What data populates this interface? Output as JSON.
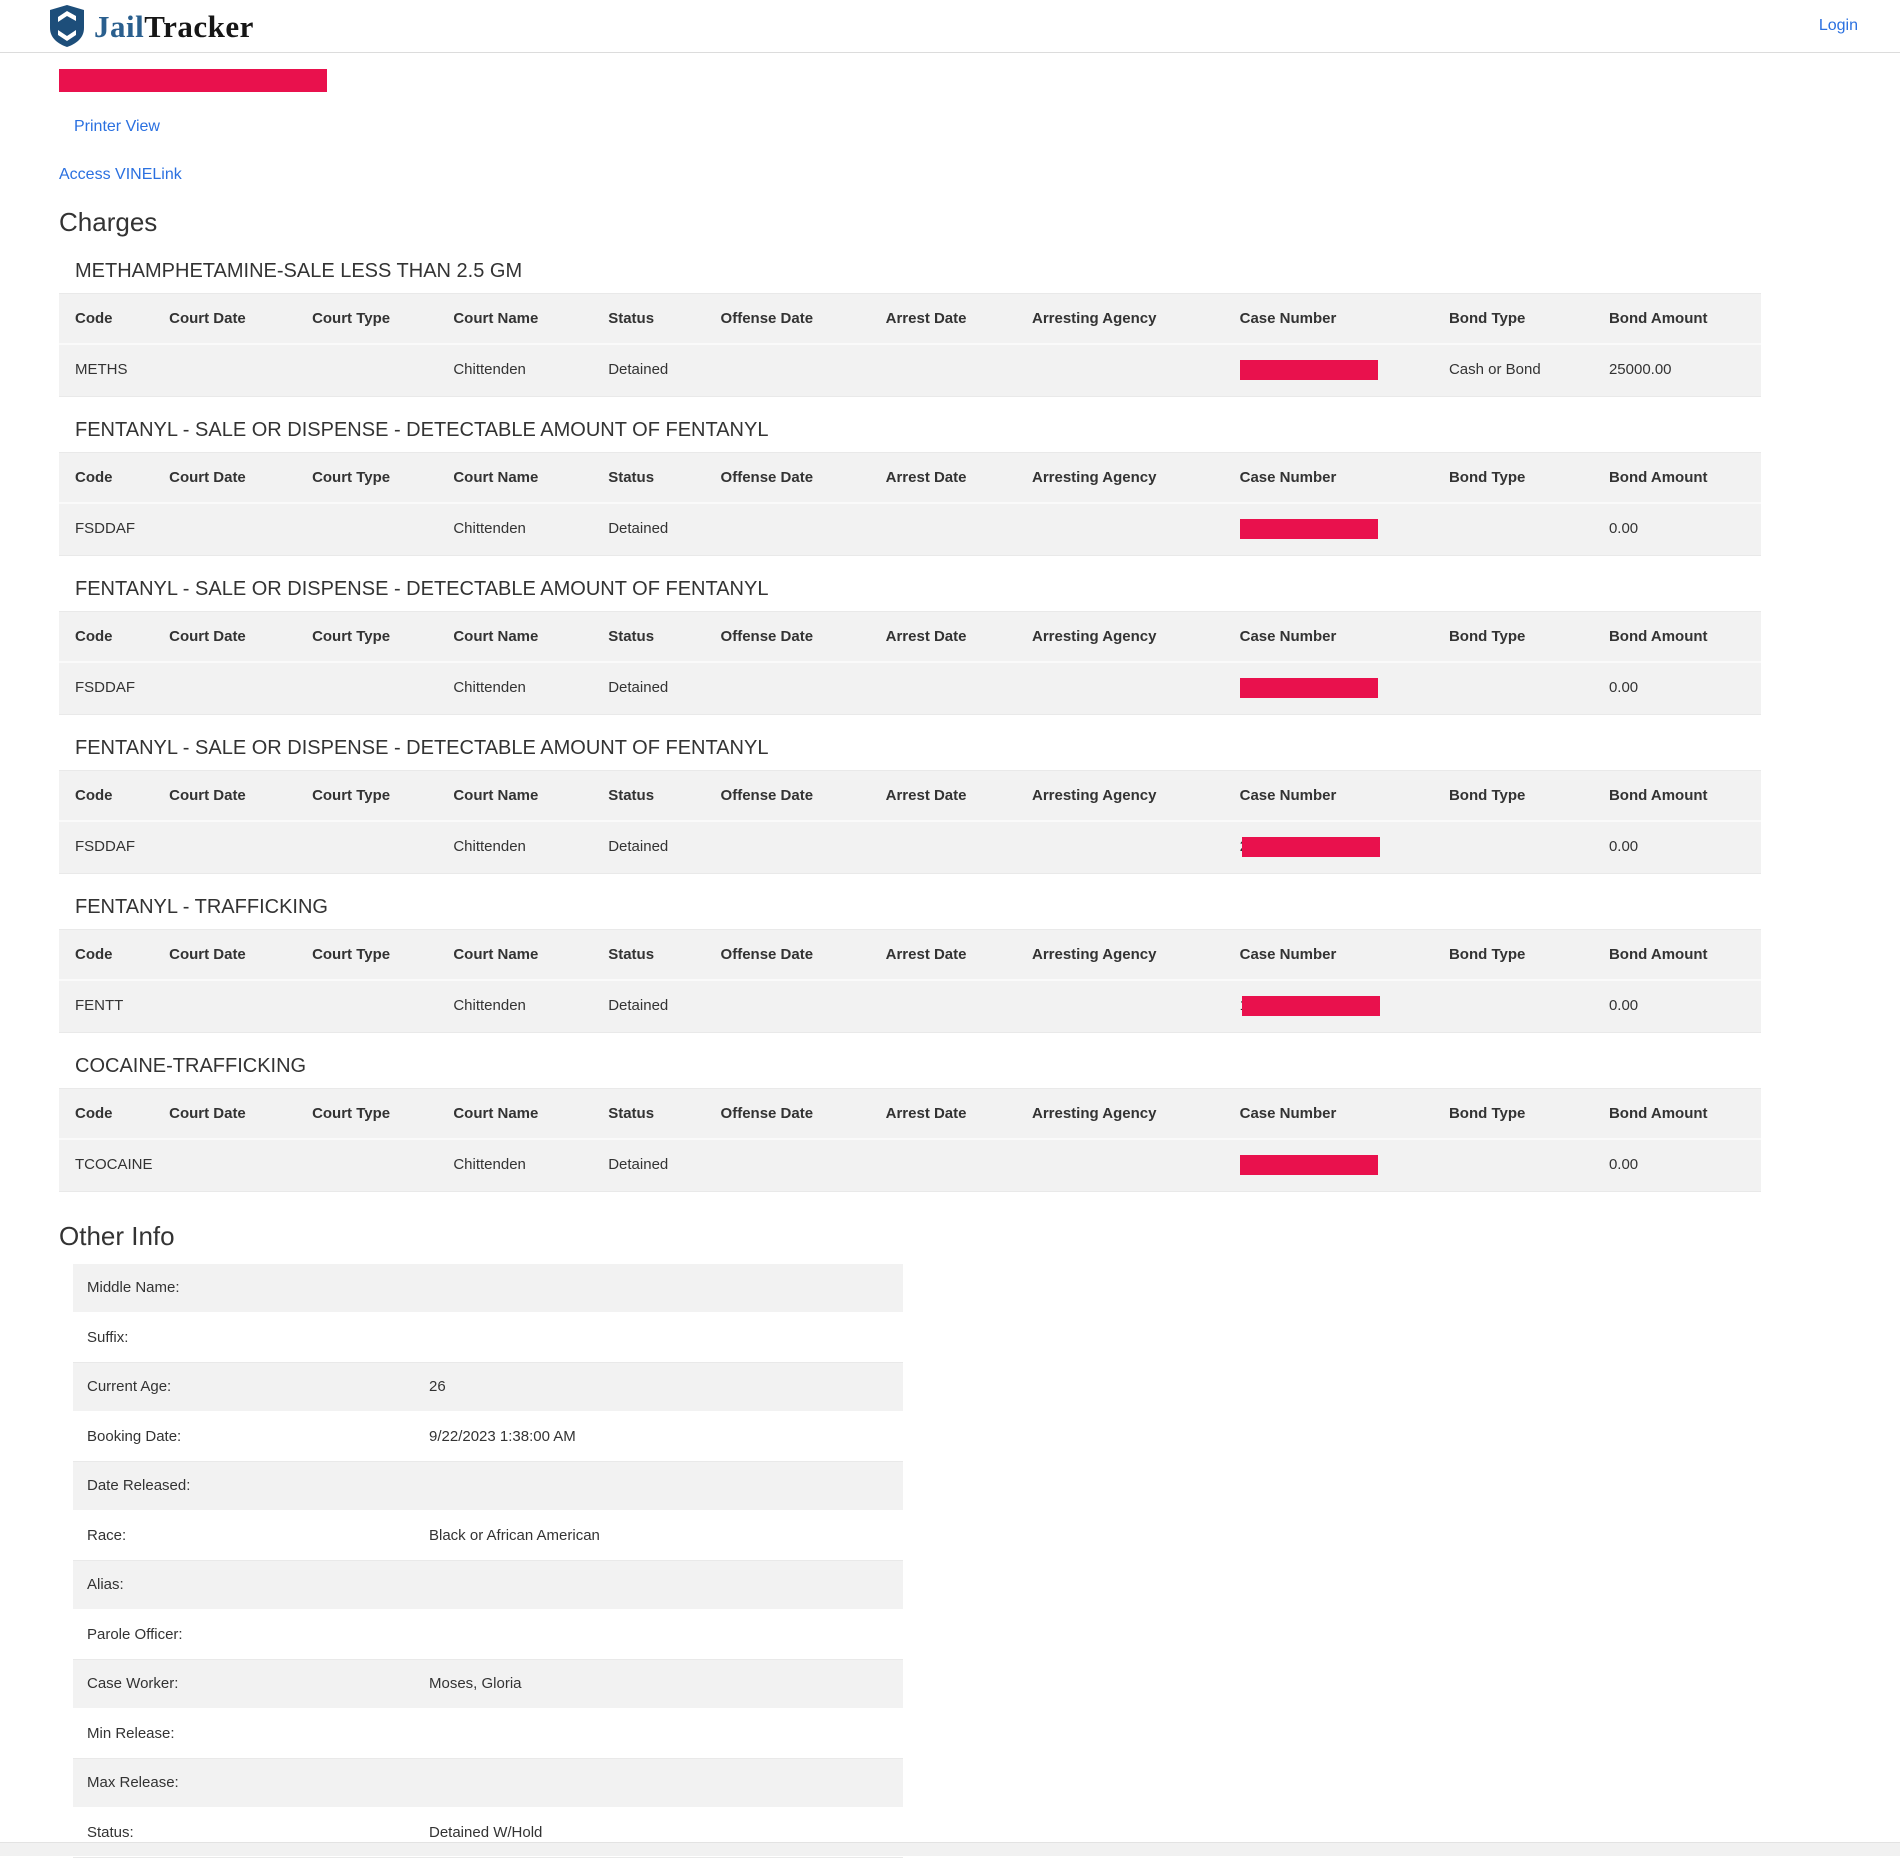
{
  "header": {
    "brand_jail": "Jail",
    "brand_tracker": "Tracker",
    "login_label": "Login"
  },
  "nav": {
    "printer_view_label": "Printer View",
    "vinelink_label": "Access VINELink"
  },
  "charges": {
    "heading": "Charges",
    "columns": [
      "Code",
      "Court Date",
      "Court Type",
      "Court Name",
      "Status",
      "Offense Date",
      "Arrest Date",
      "Arresting Agency",
      "Case Number",
      "Bond Type",
      "Bond Amount"
    ],
    "sections": [
      {
        "title": "METHAMPHETAMINE-SALE LESS THAN 2.5 GM",
        "row": {
          "code": "METHS",
          "court_date": "",
          "court_type": "",
          "court_name": "Chittenden",
          "status": "Detained",
          "offense_date": "",
          "arrest_date": "",
          "arresting_agency": "",
          "case_number_redacted": true,
          "case_number_visible_fragment": "",
          "bond_type": "Cash or Bond",
          "bond_amount": "25000.00"
        }
      },
      {
        "title": "FENTANYL - SALE OR DISPENSE - DETECTABLE AMOUNT OF FENTANYL",
        "row": {
          "code": "FSDDAF",
          "court_date": "",
          "court_type": "",
          "court_name": "Chittenden",
          "status": "Detained",
          "offense_date": "",
          "arrest_date": "",
          "arresting_agency": "",
          "case_number_redacted": true,
          "case_number_visible_fragment": "",
          "bond_type": "",
          "bond_amount": "0.00"
        }
      },
      {
        "title": "FENTANYL - SALE OR DISPENSE - DETECTABLE AMOUNT OF FENTANYL",
        "row": {
          "code": "FSDDAF",
          "court_date": "",
          "court_type": "",
          "court_name": "Chittenden",
          "status": "Detained",
          "offense_date": "",
          "arrest_date": "",
          "arresting_agency": "",
          "case_number_redacted": true,
          "case_number_visible_fragment": "",
          "bond_type": "",
          "bond_amount": "0.00"
        }
      },
      {
        "title": "FENTANYL - SALE OR DISPENSE - DETECTABLE AMOUNT OF FENTANYL",
        "row": {
          "code": "FSDDAF",
          "court_date": "",
          "court_type": "",
          "court_name": "Chittenden",
          "status": "Detained",
          "offense_date": "",
          "arrest_date": "",
          "arresting_agency": "",
          "case_number_redacted": true,
          "case_number_visible_fragment": "2",
          "bond_type": "",
          "bond_amount": "0.00"
        }
      },
      {
        "title": "FENTANYL - TRAFFICKING",
        "row": {
          "code": "FENTT",
          "court_date": "",
          "court_type": "",
          "court_name": "Chittenden",
          "status": "Detained",
          "offense_date": "",
          "arrest_date": "",
          "arresting_agency": "",
          "case_number_redacted": true,
          "case_number_visible_fragment": "1",
          "bond_type": "",
          "bond_amount": "0.00"
        }
      },
      {
        "title": "COCAINE-TRAFFICKING",
        "row": {
          "code": "TCOCAINE",
          "court_date": "",
          "court_type": "",
          "court_name": "Chittenden",
          "status": "Detained",
          "offense_date": "",
          "arrest_date": "",
          "arresting_agency": "",
          "case_number_redacted": true,
          "case_number_visible_fragment": "",
          "bond_type": "",
          "bond_amount": "0.00"
        }
      }
    ]
  },
  "other_info": {
    "heading": "Other Info",
    "rows": [
      {
        "label": "Middle Name:",
        "value": ""
      },
      {
        "label": "Suffix:",
        "value": ""
      },
      {
        "label": "Current Age:",
        "value": "26"
      },
      {
        "label": "Booking Date:",
        "value": "9/22/2023 1:38:00 AM"
      },
      {
        "label": "Date Released:",
        "value": ""
      },
      {
        "label": "Race:",
        "value": "Black or African American"
      },
      {
        "label": "Alias:",
        "value": ""
      },
      {
        "label": "Parole Officer:",
        "value": ""
      },
      {
        "label": "Case Worker:",
        "value": "Moses, Gloria"
      },
      {
        "label": "Min Release:",
        "value": ""
      },
      {
        "label": "Max Release:",
        "value": ""
      },
      {
        "label": "Status:",
        "value": "Detained W/Hold"
      }
    ]
  },
  "colors": {
    "redaction_red": "#e9114d",
    "link_blue": "#2a70e0",
    "brand_blue": "#2a5f8e",
    "shield_navy": "#1d4e7a"
  }
}
